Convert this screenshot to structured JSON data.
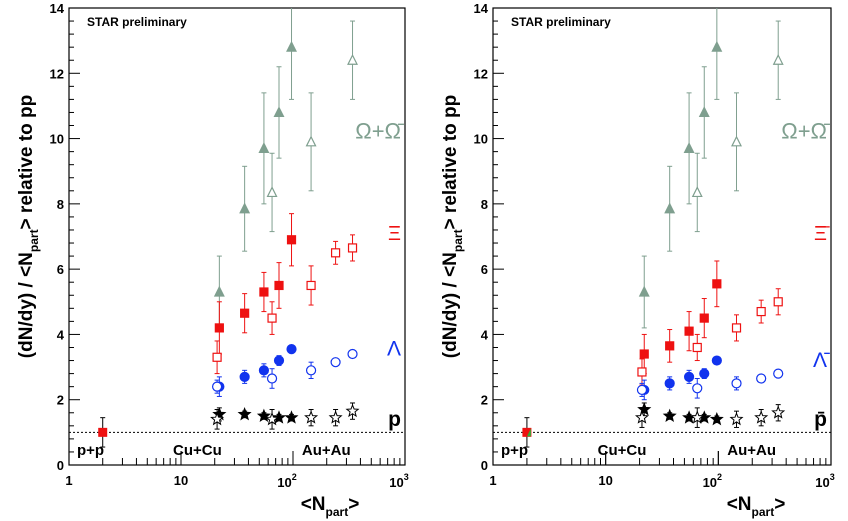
{
  "colors": {
    "omega": "#7f9f8f",
    "xi": "#ee1111",
    "lambda": "#1133ee",
    "proton": "#000000",
    "pp_point": "#ee1111",
    "pp_point_green": "#33aa33"
  },
  "chart_data": [
    {
      "type": "scatter",
      "panel": "left",
      "title": "STAR preliminary",
      "xlabel_main": "<N",
      "xlabel_sub": "part",
      "xlabel_end": ">",
      "ylabel_main": "(dN/dy) / <N",
      "ylabel_sub": "part",
      "ylabel_end": "> relative to pp",
      "xscale": "log",
      "xlim": [
        1,
        1000
      ],
      "ylim": [
        0,
        14
      ],
      "x_ticks": [
        {
          "value": 1,
          "label": "1"
        },
        {
          "value": 10,
          "label": "10"
        },
        {
          "value": 100,
          "base": "10",
          "exp": "2"
        },
        {
          "value": 1000,
          "base": "10",
          "exp": "3"
        }
      ],
      "y_ticks": [
        {
          "value": 0,
          "label": "0"
        },
        {
          "value": 2,
          "label": "2"
        },
        {
          "value": 4,
          "label": "4"
        },
        {
          "value": 6,
          "label": "6"
        },
        {
          "value": 8,
          "label": "8"
        },
        {
          "value": 10,
          "label": "10"
        },
        {
          "value": 12,
          "label": "12"
        },
        {
          "value": 14,
          "label": "14"
        }
      ],
      "reference_line": 1,
      "system_labels": [
        "p+p",
        "Cu+Cu",
        "Au+Au"
      ],
      "pp_point": {
        "x": 2,
        "y": 1.0,
        "err": 0.45
      },
      "series": [
        {
          "label": "Ω+Ω̄",
          "color_key": "omega",
          "marker": "triangle",
          "cucu": [
            [
              22,
              5.3,
              1.1
            ],
            [
              37,
              7.85,
              1.3
            ],
            [
              55,
              9.7,
              1.7
            ],
            [
              75,
              10.8,
              1.4
            ],
            [
              97,
              12.8,
              1.6
            ]
          ],
          "auau": [
            [
              65,
              8.35,
              1.2
            ],
            [
              145,
              9.9,
              1.5
            ],
            [
              340,
              12.4,
              1.2
            ]
          ]
        },
        {
          "label": "Ξ",
          "color_key": "xi",
          "marker": "square",
          "cucu": [
            [
              22,
              4.2,
              0.8
            ],
            [
              37,
              4.65,
              0.6
            ],
            [
              55,
              5.3,
              0.6
            ],
            [
              75,
              5.5,
              0.7
            ],
            [
              97,
              6.9,
              0.8
            ]
          ],
          "auau": [
            [
              21,
              3.3,
              0.5
            ],
            [
              65,
              4.5,
              0.5
            ],
            [
              145,
              5.5,
              0.6
            ],
            [
              240,
              6.5,
              0.35
            ],
            [
              340,
              6.65,
              0.4
            ]
          ]
        },
        {
          "label": "Λ",
          "color_key": "lambda",
          "marker": "circle",
          "cucu": [
            [
              22,
              2.4,
              0.3
            ],
            [
              37,
              2.7,
              0.2
            ],
            [
              55,
              2.9,
              0.2
            ],
            [
              75,
              3.2,
              0.15
            ],
            [
              97,
              3.55,
              0.1
            ]
          ],
          "auau": [
            [
              21,
              2.4,
              0.2
            ],
            [
              65,
              2.65,
              0.3
            ],
            [
              145,
              2.9,
              0.25
            ],
            [
              240,
              3.15,
              0.1
            ],
            [
              340,
              3.4,
              0.1
            ]
          ]
        },
        {
          "label": "p",
          "color_key": "proton",
          "marker": "star",
          "cucu": [
            [
              22,
              1.55,
              0.2
            ],
            [
              37,
              1.55,
              0.1
            ],
            [
              55,
              1.5,
              0.1
            ],
            [
              75,
              1.45,
              0.1
            ],
            [
              97,
              1.45,
              0.1
            ]
          ],
          "auau": [
            [
              21,
              1.4,
              0.3
            ],
            [
              65,
              1.4,
              0.3
            ],
            [
              145,
              1.45,
              0.25
            ],
            [
              240,
              1.45,
              0.25
            ],
            [
              340,
              1.65,
              0.25
            ]
          ]
        }
      ]
    },
    {
      "type": "scatter",
      "panel": "right",
      "title": "STAR preliminary",
      "xlabel_main": "<N",
      "xlabel_sub": "part",
      "xlabel_end": ">",
      "ylabel_main": "(dN/dy) / <N",
      "ylabel_sub": "part",
      "ylabel_end": "> relative to pp",
      "xscale": "log",
      "xlim": [
        1,
        1000
      ],
      "ylim": [
        0,
        14
      ],
      "x_ticks": [
        {
          "value": 1,
          "label": "1"
        },
        {
          "value": 10,
          "label": "10"
        },
        {
          "value": 100,
          "base": "10",
          "exp": "2"
        },
        {
          "value": 1000,
          "base": "10",
          "exp": "3"
        }
      ],
      "y_ticks": [
        {
          "value": 0,
          "label": "0"
        },
        {
          "value": 2,
          "label": "2"
        },
        {
          "value": 4,
          "label": "4"
        },
        {
          "value": 6,
          "label": "6"
        },
        {
          "value": 8,
          "label": "8"
        },
        {
          "value": 10,
          "label": "10"
        },
        {
          "value": 12,
          "label": "12"
        },
        {
          "value": 14,
          "label": "14"
        }
      ],
      "reference_line": 1,
      "system_labels": [
        "p+p",
        "Cu+Cu",
        "Au+Au"
      ],
      "pp_point": {
        "x": 2,
        "y": 1.0,
        "err": 0.45
      },
      "series": [
        {
          "label": "Ω+Ω̄",
          "color_key": "omega",
          "marker": "triangle",
          "cucu": [
            [
              22,
              5.3,
              1.1
            ],
            [
              37,
              7.85,
              1.3
            ],
            [
              55,
              9.7,
              1.7
            ],
            [
              75,
              10.8,
              1.4
            ],
            [
              97,
              12.8,
              1.6
            ]
          ],
          "auau": [
            [
              65,
              8.35,
              1.2
            ],
            [
              145,
              9.9,
              1.5
            ],
            [
              340,
              12.4,
              1.2
            ]
          ]
        },
        {
          "label": "Ξ̄",
          "color_key": "xi",
          "marker": "square",
          "cucu": [
            [
              22,
              3.4,
              0.6
            ],
            [
              37,
              3.65,
              0.5
            ],
            [
              55,
              4.1,
              0.6
            ],
            [
              75,
              4.5,
              0.6
            ],
            [
              97,
              5.55,
              0.7
            ]
          ],
          "auau": [
            [
              21,
              2.85,
              0.4
            ],
            [
              65,
              3.6,
              0.4
            ],
            [
              145,
              4.2,
              0.4
            ],
            [
              240,
              4.7,
              0.35
            ],
            [
              340,
              5.0,
              0.4
            ]
          ]
        },
        {
          "label": "Λ̄",
          "color_key": "lambda",
          "marker": "circle",
          "cucu": [
            [
              22,
              2.3,
              0.3
            ],
            [
              37,
              2.5,
              0.2
            ],
            [
              55,
              2.7,
              0.2
            ],
            [
              75,
              2.8,
              0.15
            ],
            [
              97,
              3.2,
              0.1
            ]
          ],
          "auau": [
            [
              21,
              2.3,
              0.2
            ],
            [
              65,
              2.35,
              0.3
            ],
            [
              145,
              2.5,
              0.2
            ],
            [
              240,
              2.65,
              0.1
            ],
            [
              340,
              2.8,
              0.1
            ]
          ]
        },
        {
          "label": "p̄",
          "color_key": "proton",
          "marker": "star",
          "cucu": [
            [
              22,
              1.7,
              0.2
            ],
            [
              37,
              1.5,
              0.1
            ],
            [
              55,
              1.45,
              0.1
            ],
            [
              75,
              1.45,
              0.1
            ],
            [
              97,
              1.4,
              0.1
            ]
          ],
          "auau": [
            [
              21,
              1.45,
              0.3
            ],
            [
              65,
              1.45,
              0.3
            ],
            [
              145,
              1.4,
              0.25
            ],
            [
              240,
              1.45,
              0.25
            ],
            [
              340,
              1.6,
              0.25
            ]
          ]
        }
      ]
    }
  ]
}
